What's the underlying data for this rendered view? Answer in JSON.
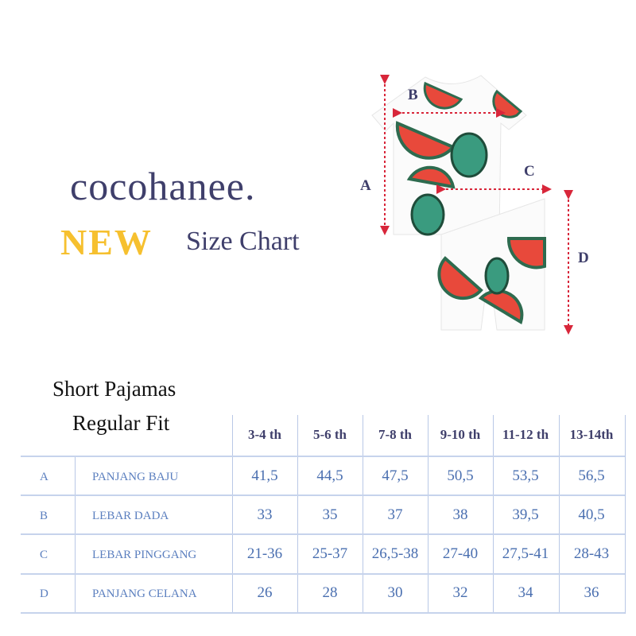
{
  "brand": {
    "logo": "cocohanee.",
    "new_label": "NEW",
    "subtitle": "Size Chart",
    "colors": {
      "navy": "#3f3f6b",
      "yellow": "#f6c02f",
      "table_text": "#4a6fb0"
    }
  },
  "illustration": {
    "labels": [
      "A",
      "B",
      "C",
      "D"
    ]
  },
  "table": {
    "title": "Short Pajamas",
    "fit": "Regular Fit",
    "columns": [
      "3-4 th",
      "5-6 th",
      "7-8 th",
      "9-10 th",
      "11-12 th",
      "13-14th"
    ],
    "rows": [
      {
        "code": "A",
        "label": "PANJANG BAJU",
        "values": [
          "41,5",
          "44,5",
          "47,5",
          "50,5",
          "53,5",
          "56,5"
        ]
      },
      {
        "code": "B",
        "label": "LEBAR DADA",
        "values": [
          "33",
          "35",
          "37",
          "38",
          "39,5",
          "40,5"
        ]
      },
      {
        "code": "C",
        "label": "LEBAR PINGGANG",
        "values": [
          "21-36",
          "25-37",
          "26,5-38",
          "27-40",
          "27,5-41",
          "28-43"
        ]
      },
      {
        "code": "D",
        "label": "PANJANG CELANA",
        "values": [
          "26",
          "28",
          "30",
          "32",
          "34",
          "36"
        ]
      }
    ]
  }
}
